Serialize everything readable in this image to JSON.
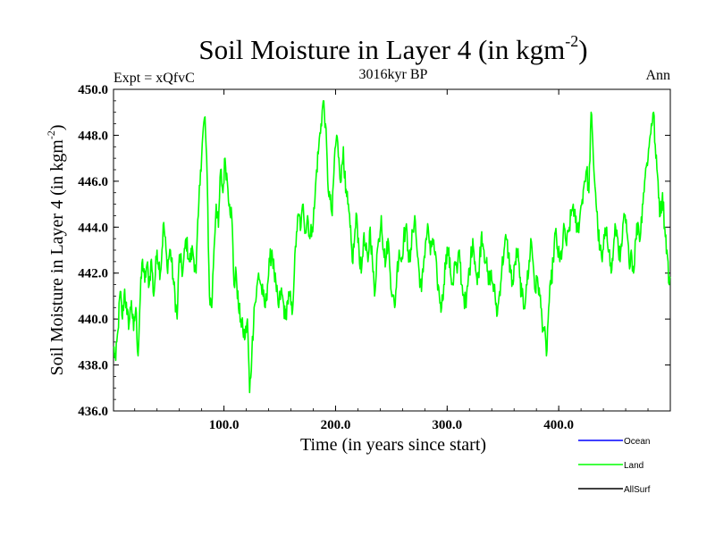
{
  "chart_data": {
    "type": "line",
    "title_main": "Soil Moisture in Layer 4 (in kgm",
    "title_sup": "-2",
    "title_close": ")",
    "subtitle_center": "3016kyr BP",
    "subtitle_left": "Expt = xQfvC",
    "subtitle_right": "Ann",
    "xlabel": "Time (in years since start)",
    "ylabel_main": "Soil Moisture in Layer 4 (in kgm",
    "ylabel_sup": "-2",
    "ylabel_close": ")",
    "xlim": [
      1,
      500
    ],
    "ylim": [
      436,
      450
    ],
    "xticks": [
      100,
      200,
      300,
      400
    ],
    "xtick_labels": [
      "100.0",
      "200.0",
      "300.0",
      "400.0"
    ],
    "yticks": [
      436,
      438,
      440,
      442,
      444,
      446,
      448,
      450
    ],
    "ytick_labels": [
      "436.0",
      "438.0",
      "440.0",
      "442.0",
      "444.0",
      "446.0",
      "448.0",
      "450.0"
    ],
    "series": [
      {
        "name": "Ocean",
        "color": "#0000ff",
        "keypoints": []
      },
      {
        "name": "Land",
        "color": "#00ff00",
        "keypoints": [
          [
            1,
            438.8
          ],
          [
            3,
            438.2
          ],
          [
            5,
            439.5
          ],
          [
            7,
            441.2
          ],
          [
            9,
            440.0
          ],
          [
            11,
            441.3
          ],
          [
            13,
            440.2
          ],
          [
            15,
            439.8
          ],
          [
            17,
            440.8
          ],
          [
            19,
            439.5
          ],
          [
            21,
            440.5
          ],
          [
            23,
            438.4
          ],
          [
            25,
            441.0
          ],
          [
            27,
            442.6
          ],
          [
            29,
            441.6
          ],
          [
            31,
            442.4
          ],
          [
            33,
            441.5
          ],
          [
            35,
            442.6
          ],
          [
            37,
            441.0
          ],
          [
            40,
            443.0
          ],
          [
            43,
            442.0
          ],
          [
            46,
            444.2
          ],
          [
            49,
            442.3
          ],
          [
            52,
            443.0
          ],
          [
            55,
            441.5
          ],
          [
            58,
            440.0
          ],
          [
            60,
            442.8
          ],
          [
            63,
            442.0
          ],
          [
            66,
            443.5
          ],
          [
            69,
            442.5
          ],
          [
            72,
            443.0
          ],
          [
            75,
            442.0
          ],
          [
            77,
            444.5
          ],
          [
            79,
            446.5
          ],
          [
            81,
            448.0
          ],
          [
            83,
            448.8
          ],
          [
            85,
            446.0
          ],
          [
            87,
            441.0
          ],
          [
            89,
            440.5
          ],
          [
            91,
            443.0
          ],
          [
            93,
            445.0
          ],
          [
            95,
            444.0
          ],
          [
            97,
            446.5
          ],
          [
            99,
            445.5
          ],
          [
            101,
            447.0
          ],
          [
            103,
            446.0
          ],
          [
            105,
            445.0
          ],
          [
            107,
            444.5
          ],
          [
            109,
            441.5
          ],
          [
            111,
            442.0
          ],
          [
            113,
            440.5
          ],
          [
            115,
            440.0
          ],
          [
            117,
            439.5
          ],
          [
            119,
            439.2
          ],
          [
            121,
            440.0
          ],
          [
            123,
            436.8
          ],
          [
            125,
            438.5
          ],
          [
            127,
            440.5
          ],
          [
            129,
            441.0
          ],
          [
            131,
            442.0
          ],
          [
            133,
            441.5
          ],
          [
            135,
            441.0
          ],
          [
            137,
            440.5
          ],
          [
            139,
            441.5
          ],
          [
            141,
            442.5
          ],
          [
            143,
            443.0
          ],
          [
            145,
            442.0
          ],
          [
            147,
            441.2
          ],
          [
            149,
            440.5
          ],
          [
            151,
            441.2
          ],
          [
            153,
            440.8
          ],
          [
            155,
            440.0
          ],
          [
            157,
            440.8
          ],
          [
            159,
            441.0
          ],
          [
            161,
            440.2
          ],
          [
            163,
            442.0
          ],
          [
            165,
            443.8
          ],
          [
            167,
            444.5
          ],
          [
            169,
            444.0
          ],
          [
            171,
            445.0
          ],
          [
            173,
            443.8
          ],
          [
            175,
            444.5
          ],
          [
            177,
            443.5
          ],
          [
            179,
            444.0
          ],
          [
            181,
            444.8
          ],
          [
            183,
            446.5
          ],
          [
            185,
            447.5
          ],
          [
            187,
            448.5
          ],
          [
            189,
            449.5
          ],
          [
            191,
            448.5
          ],
          [
            193,
            446.0
          ],
          [
            195,
            445.2
          ],
          [
            197,
            444.5
          ],
          [
            199,
            447.0
          ],
          [
            201,
            448.0
          ],
          [
            203,
            447.0
          ],
          [
            205,
            446.0
          ],
          [
            207,
            447.5
          ],
          [
            209,
            445.5
          ],
          [
            211,
            445.0
          ],
          [
            213,
            444.0
          ],
          [
            215,
            442.5
          ],
          [
            217,
            443.5
          ],
          [
            219,
            444.5
          ],
          [
            221,
            443.0
          ],
          [
            223,
            442.0
          ],
          [
            225,
            443.5
          ],
          [
            227,
            443.0
          ],
          [
            229,
            442.5
          ],
          [
            231,
            444.0
          ],
          [
            233,
            442.5
          ],
          [
            235,
            441.0
          ],
          [
            237,
            442.8
          ],
          [
            239,
            443.5
          ],
          [
            241,
            444.5
          ],
          [
            243,
            443.0
          ],
          [
            245,
            442.5
          ],
          [
            247,
            443.5
          ],
          [
            249,
            442.0
          ],
          [
            251,
            441.0
          ],
          [
            253,
            440.5
          ],
          [
            255,
            442.0
          ],
          [
            257,
            443.0
          ],
          [
            259,
            442.5
          ],
          [
            261,
            443.5
          ],
          [
            263,
            444.0
          ],
          [
            265,
            443.0
          ],
          [
            267,
            442.5
          ],
          [
            269,
            443.8
          ],
          [
            271,
            444.5
          ],
          [
            273,
            443.0
          ],
          [
            275,
            442.0
          ],
          [
            277,
            441.2
          ],
          [
            279,
            442.5
          ],
          [
            281,
            443.5
          ],
          [
            283,
            444.0
          ],
          [
            285,
            442.8
          ],
          [
            287,
            443.5
          ],
          [
            289,
            442.8
          ],
          [
            291,
            441.8
          ],
          [
            293,
            441.0
          ],
          [
            295,
            440.5
          ],
          [
            297,
            441.5
          ],
          [
            299,
            442.8
          ],
          [
            301,
            443.0
          ],
          [
            303,
            442.0
          ],
          [
            305,
            441.5
          ],
          [
            307,
            442.5
          ],
          [
            309,
            442.0
          ],
          [
            311,
            443.0
          ],
          [
            313,
            441.5
          ],
          [
            315,
            441.0
          ],
          [
            317,
            440.5
          ],
          [
            319,
            441.8
          ],
          [
            321,
            442.5
          ],
          [
            323,
            443.5
          ],
          [
            325,
            442.5
          ],
          [
            327,
            441.5
          ],
          [
            329,
            442.5
          ],
          [
            331,
            443.8
          ],
          [
            333,
            443.0
          ],
          [
            335,
            442.5
          ],
          [
            337,
            441.5
          ],
          [
            339,
            442.0
          ],
          [
            341,
            441.5
          ],
          [
            343,
            441.0
          ],
          [
            345,
            440.2
          ],
          [
            347,
            441.2
          ],
          [
            349,
            442.2
          ],
          [
            351,
            443.0
          ],
          [
            353,
            443.5
          ],
          [
            355,
            442.8
          ],
          [
            357,
            442.0
          ],
          [
            359,
            441.5
          ],
          [
            361,
            442.5
          ],
          [
            363,
            443.0
          ],
          [
            365,
            441.8
          ],
          [
            367,
            441.0
          ],
          [
            369,
            440.5
          ],
          [
            371,
            441.5
          ],
          [
            373,
            442.0
          ],
          [
            375,
            443.5
          ],
          [
            377,
            442.5
          ],
          [
            379,
            441.2
          ],
          [
            381,
            441.8
          ],
          [
            383,
            441.0
          ],
          [
            385,
            440.0
          ],
          [
            387,
            439.5
          ],
          [
            389,
            438.4
          ],
          [
            391,
            440.5
          ],
          [
            393,
            441.5
          ],
          [
            395,
            442.5
          ],
          [
            397,
            443.8
          ],
          [
            399,
            443.0
          ],
          [
            401,
            442.5
          ],
          [
            403,
            443.0
          ],
          [
            405,
            444.0
          ],
          [
            407,
            443.2
          ],
          [
            409,
            443.8
          ],
          [
            411,
            444.5
          ],
          [
            413,
            445.0
          ],
          [
            415,
            444.2
          ],
          [
            417,
            443.8
          ],
          [
            419,
            444.5
          ],
          [
            421,
            445.2
          ],
          [
            423,
            446.0
          ],
          [
            425,
            446.5
          ],
          [
            427,
            445.5
          ],
          [
            429,
            449.0
          ],
          [
            431,
            447.0
          ],
          [
            433,
            445.5
          ],
          [
            435,
            444.0
          ],
          [
            437,
            443.0
          ],
          [
            439,
            442.5
          ],
          [
            441,
            443.5
          ],
          [
            443,
            444.0
          ],
          [
            445,
            443.0
          ],
          [
            447,
            442.0
          ],
          [
            449,
            443.0
          ],
          [
            451,
            444.0
          ],
          [
            453,
            443.5
          ],
          [
            455,
            442.5
          ],
          [
            457,
            443.5
          ],
          [
            459,
            444.5
          ],
          [
            461,
            443.8
          ],
          [
            463,
            442.5
          ],
          [
            465,
            443.0
          ],
          [
            467,
            442.0
          ],
          [
            469,
            443.5
          ],
          [
            471,
            444.2
          ],
          [
            473,
            443.5
          ],
          [
            475,
            445.0
          ],
          [
            477,
            446.0
          ],
          [
            479,
            446.8
          ],
          [
            481,
            447.5
          ],
          [
            483,
            448.5
          ],
          [
            485,
            449.0
          ],
          [
            487,
            447.0
          ],
          [
            489,
            446.0
          ],
          [
            491,
            444.5
          ],
          [
            493,
            445.5
          ],
          [
            495,
            444.0
          ],
          [
            497,
            443.0
          ],
          [
            499,
            441.5
          ],
          [
            500,
            441.8
          ]
        ]
      },
      {
        "name": "AllSurf",
        "color": "#000000",
        "keypoints": []
      }
    ],
    "legend_position": "bottom-right"
  }
}
